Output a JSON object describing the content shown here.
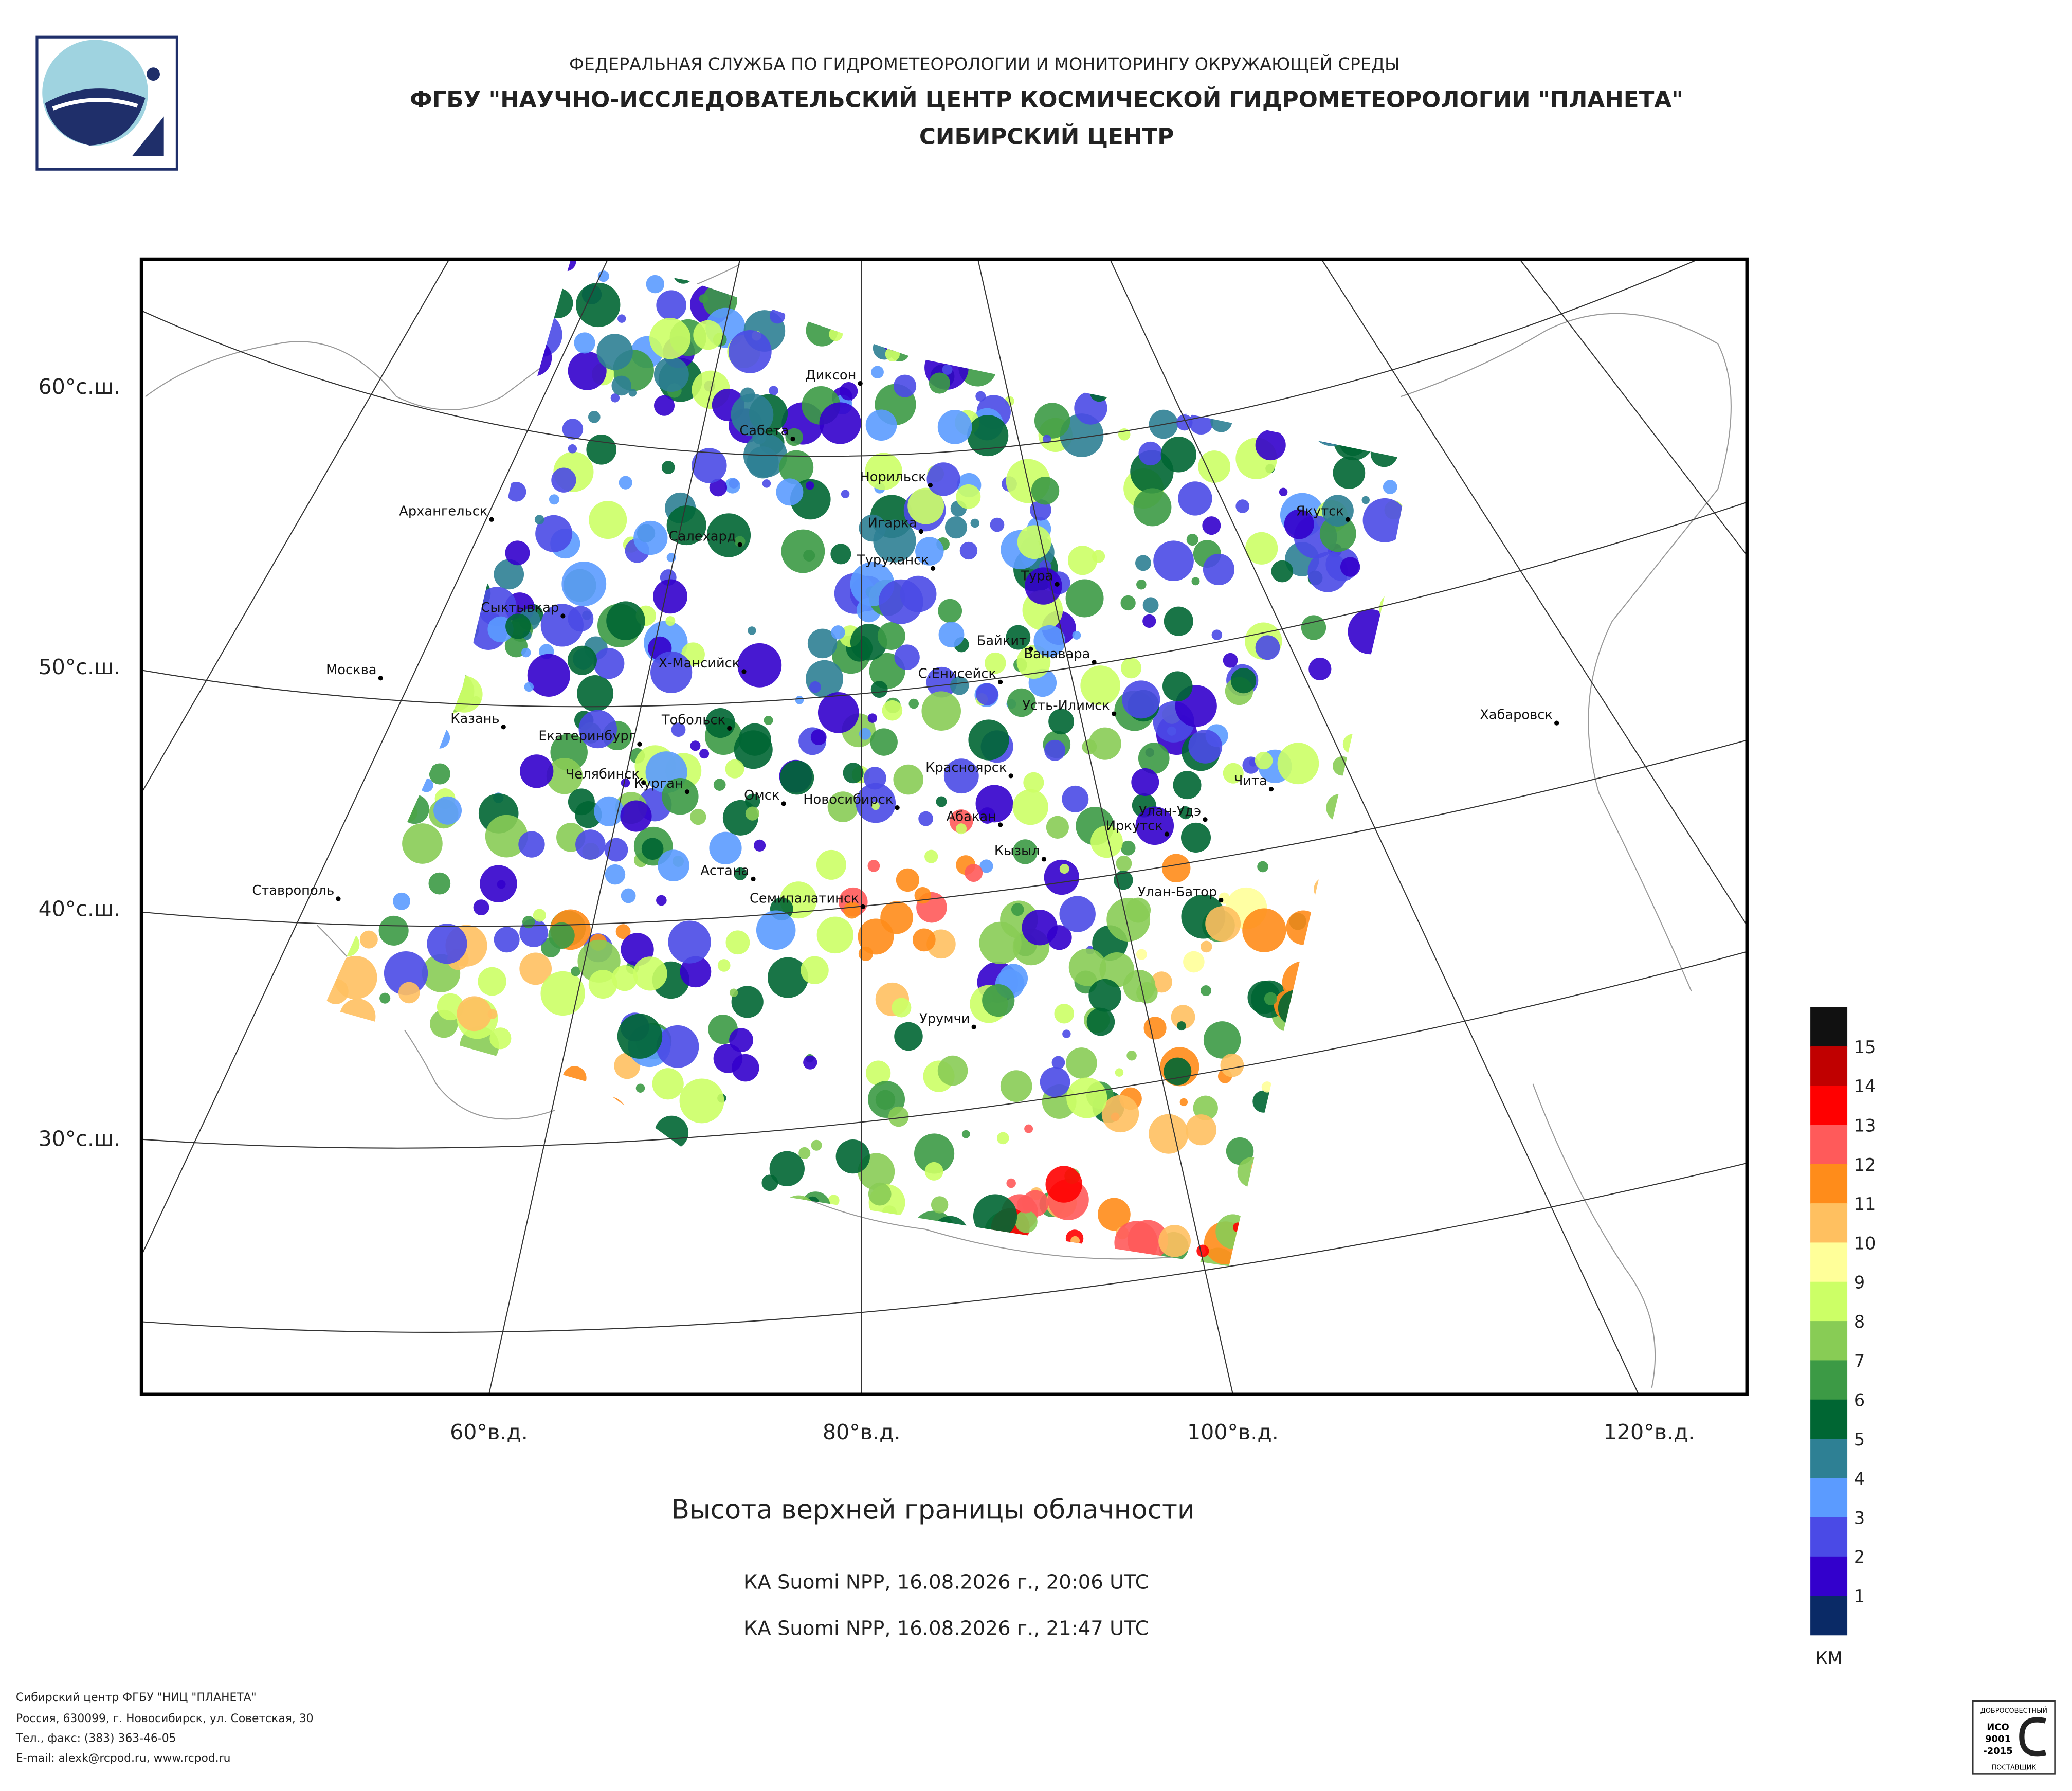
{
  "header": {
    "lines": [
      "ФЕДЕРАЛЬНАЯ СЛУЖБА ПО ГИДРОМЕТЕОРОЛОГИИ И МОНИТОРИНГУ ОКРУЖАЮЩЕЙ СРЕДЫ",
      "ФГБУ \"НАУЧНО-ИССЛЕДОВАТЕЛЬСКИЙ ЦЕНТР КОСМИЧЕСКОЙ ГИДРОМЕТЕОРОЛОГИИ \"ПЛАНЕТА\"",
      "СИБИРСКИЙ ЦЕНТР"
    ]
  },
  "map": {
    "lat_labels": [
      "60°с.ш.",
      "50°с.ш.",
      "40°с.ш.",
      "30°с.ш."
    ],
    "lon_labels": [
      "60°в.д.",
      "80°в.д.",
      "100°в.д.",
      "120°в.д."
    ],
    "cities": [
      "Диксон",
      "Сабета",
      "Норильск",
      "Архангельск",
      "Якутск",
      "Игарка",
      "Салехард",
      "Туруханск",
      "Тура",
      "Сыктывкар",
      "Байкит",
      "Ванавара",
      "Москва",
      "Х-Мансийск",
      "С.Енисейск",
      "Усть-Илимск",
      "Хабаровск",
      "Казань",
      "Тобольск",
      "Екатеринбург",
      "Красноярск",
      "Челябинск",
      "Чита",
      "Курган",
      "Омск",
      "Новосибирск",
      "Улан-Удэ",
      "Абакан",
      "Иркутск",
      "Кызыл",
      "Астана",
      "Ставрополь",
      "Улан-Батор",
      "Семипалатинск",
      "Урумчи"
    ]
  },
  "legend": {
    "colors": [
      "#111111",
      "#c00000",
      "#ff0000",
      "#ff5a5a",
      "#ff8c1a",
      "#ffc060",
      "#ffff99",
      "#ccff66",
      "#88cc55",
      "#3c9a45",
      "#006633",
      "#2e8094",
      "#5b9bff",
      "#4a4ae6",
      "#3300cc",
      "#0a2a66"
    ],
    "labels": [
      15,
      14,
      13,
      12,
      11,
      10,
      9,
      8,
      7,
      6,
      5,
      4,
      3,
      2,
      1
    ],
    "unit": "КМ"
  },
  "title": "Высота верхней границы облачности",
  "passes": [
    "КА Suomi NPP, 16.08.2026 г., 20:06 UTC",
    "КА Suomi NPP, 16.08.2026 г., 21:47 UTC"
  ],
  "footer": {
    "lines": [
      "Сибирский центр ФГБУ \"НИЦ \"ПЛАНЕТА\"",
      "Россия, 630099, г. Новосибирск, ул. Советская, 30",
      "Тел., факс: (383) 363-46-05",
      "E-mail: alexk@rcpod.ru, www.rcpod.ru"
    ]
  },
  "badge": {
    "top": "ДОБРОСОВЕСТНЫЙ",
    "lines": [
      "ИСО",
      "9001",
      "-2015"
    ],
    "bottom": "ПОСТАВЩИК"
  }
}
